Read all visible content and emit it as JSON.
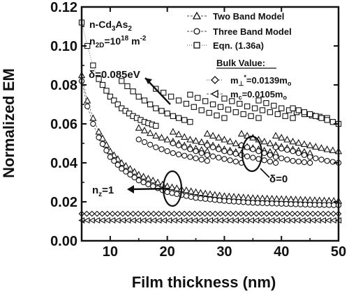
{
  "chart_data": {
    "type": "scatter",
    "xlabel": "Film thickness (nm)",
    "ylabel": "Normalized EM",
    "xlim": [
      5,
      50
    ],
    "ylim": [
      0,
      0.12
    ],
    "x_ticks": [
      10,
      20,
      30,
      40,
      50
    ],
    "y_ticks": [
      0.0,
      0.02,
      0.04,
      0.06,
      0.08,
      0.1,
      0.12
    ],
    "x_tick_labels": [
      "10",
      "20",
      "30",
      "40",
      "50"
    ],
    "y_tick_labels": [
      "0.00",
      "0.02",
      "0.04",
      "0.06",
      "0.08",
      "0.10",
      "0.12"
    ],
    "grid": false,
    "legend_placement": "top-right",
    "info": {
      "material_main": "n-Cd",
      "material_sub1": "3",
      "material_mid": "As",
      "material_sub2": "2",
      "density_main": "n",
      "density_sub": "2D",
      "density_eq": "=10",
      "density_sup1": "18",
      "density_unit": " m",
      "density_sup2": "-2"
    },
    "legend": [
      {
        "label": "Two Band Model",
        "marker": "triangle-up",
        "line": "dash"
      },
      {
        "label": "Three Band Model",
        "marker": "circle",
        "line": "dash"
      },
      {
        "label": "Eqn. (1.36a)",
        "marker": "square",
        "line": "dot"
      }
    ],
    "bulk": {
      "title": "Bulk Value:",
      "entries": [
        {
          "main": "m",
          "sub": "⊥",
          "sup": "*",
          "value": "=0.0139m",
          "value_sub": "o",
          "marker": "diamond",
          "value_num": 0.0139
        },
        {
          "main": "m",
          "sub": "c",
          "sup": "",
          "value": "=0.0105m",
          "value_sub": "o",
          "marker": "triangle-left",
          "value_num": 0.0105
        }
      ]
    },
    "annotations": {
      "delta_high": "δ=0.085eV",
      "delta_zero": "δ=0",
      "nz_main": "n",
      "nz_sub": "z",
      "nz_value": "=1"
    },
    "series": [
      {
        "model": "Two Band Model",
        "marker": "triangle-up",
        "subband": 1,
        "x": [
          5,
          6,
          7,
          8,
          10,
          12,
          15,
          20,
          25,
          30,
          35,
          40,
          45,
          50
        ],
        "y": [
          0.085,
          0.072,
          0.063,
          0.056,
          0.046,
          0.04,
          0.034,
          0.028,
          0.025,
          0.023,
          0.022,
          0.0215,
          0.021,
          0.0205
        ]
      },
      {
        "model": "Three Band Model",
        "marker": "circle",
        "subband": 1,
        "x": [
          5,
          6,
          7,
          8,
          10,
          12,
          15,
          20,
          25,
          30,
          35,
          40,
          45,
          50
        ],
        "y": [
          0.082,
          0.069,
          0.06,
          0.053,
          0.043,
          0.037,
          0.031,
          0.025,
          0.022,
          0.0205,
          0.0195,
          0.019,
          0.0185,
          0.0183
        ]
      },
      {
        "model": "Eqn. (1.36a)",
        "marker": "square",
        "subband": 1,
        "x": [
          5,
          6,
          7,
          8,
          10,
          12,
          14,
          16,
          18
        ],
        "y": [
          0.112,
          0.1,
          0.09,
          0.083,
          0.074,
          0.068,
          0.064,
          0.061,
          0.059
        ]
      },
      {
        "model": "Eqn. (1.36a)",
        "marker": "square",
        "subband": 2,
        "x": [
          12,
          15,
          18,
          21,
          24
        ],
        "y": [
          0.082,
          0.074,
          0.068,
          0.064,
          0.061
        ]
      },
      {
        "model": "Eqn. (1.36a)",
        "marker": "square",
        "subband": 3,
        "x": [
          18,
          22,
          26,
          30
        ],
        "y": [
          0.078,
          0.072,
          0.067,
          0.063
        ]
      },
      {
        "model": "Eqn. (1.36a)",
        "marker": "square",
        "subband": 4,
        "x": [
          24,
          28,
          32,
          36
        ],
        "y": [
          0.075,
          0.07,
          0.066,
          0.063
        ]
      },
      {
        "model": "Eqn. (1.36a)",
        "marker": "square",
        "subband": 5,
        "x": [
          30,
          34,
          38,
          42
        ],
        "y": [
          0.073,
          0.069,
          0.066,
          0.063
        ]
      },
      {
        "model": "Eqn. (1.36a)",
        "marker": "square",
        "subband": 6,
        "x": [
          36,
          40,
          44,
          48
        ],
        "y": [
          0.072,
          0.068,
          0.065,
          0.063
        ]
      },
      {
        "model": "Eqn. (1.36a)",
        "marker": "square",
        "subband": 7,
        "x": [
          42,
          45,
          48,
          50
        ],
        "y": [
          0.068,
          0.065,
          0.062,
          0.06
        ]
      },
      {
        "model": "Two Band Model",
        "marker": "triangle-up",
        "subband": 2,
        "x": [
          15,
          18,
          21,
          24,
          27
        ],
        "y": [
          0.058,
          0.054,
          0.051,
          0.048,
          0.046
        ]
      },
      {
        "model": "Two Band Model",
        "marker": "triangle-up",
        "subband": 3,
        "x": [
          21,
          24,
          27,
          30,
          33
        ],
        "y": [
          0.056,
          0.052,
          0.05,
          0.047,
          0.045
        ]
      },
      {
        "model": "Two Band Model",
        "marker": "triangle-up",
        "subband": 4,
        "x": [
          27,
          30,
          33,
          36,
          39
        ],
        "y": [
          0.055,
          0.052,
          0.049,
          0.047,
          0.045
        ]
      },
      {
        "model": "Two Band Model",
        "marker": "triangle-up",
        "subband": 5,
        "x": [
          33,
          36,
          39,
          42,
          45
        ],
        "y": [
          0.055,
          0.052,
          0.049,
          0.047,
          0.045
        ]
      },
      {
        "model": "Two Band Model",
        "marker": "triangle-up",
        "subband": 6,
        "x": [
          39,
          42,
          45,
          48,
          50
        ],
        "y": [
          0.054,
          0.051,
          0.049,
          0.047,
          0.046
        ]
      },
      {
        "model": "Three Band Model",
        "marker": "circle",
        "subband": 2,
        "x": [
          15,
          18,
          21,
          24,
          27
        ],
        "y": [
          0.052,
          0.048,
          0.045,
          0.043,
          0.041
        ]
      },
      {
        "model": "Three Band Model",
        "marker": "circle",
        "subband": 3,
        "x": [
          21,
          24,
          27,
          30,
          33
        ],
        "y": [
          0.05,
          0.047,
          0.044,
          0.042,
          0.04
        ]
      },
      {
        "model": "Three Band Model",
        "marker": "circle",
        "subband": 4,
        "x": [
          27,
          30,
          33,
          36,
          39
        ],
        "y": [
          0.049,
          0.046,
          0.044,
          0.042,
          0.04
        ]
      },
      {
        "model": "Three Band Model",
        "marker": "circle",
        "subband": 5,
        "x": [
          33,
          36,
          39,
          42,
          45
        ],
        "y": [
          0.049,
          0.046,
          0.043,
          0.041,
          0.04
        ]
      },
      {
        "model": "Three Band Model",
        "marker": "circle",
        "subband": 6,
        "x": [
          39,
          42,
          45,
          48,
          50
        ],
        "y": [
          0.048,
          0.046,
          0.043,
          0.041,
          0.04
        ]
      }
    ]
  }
}
